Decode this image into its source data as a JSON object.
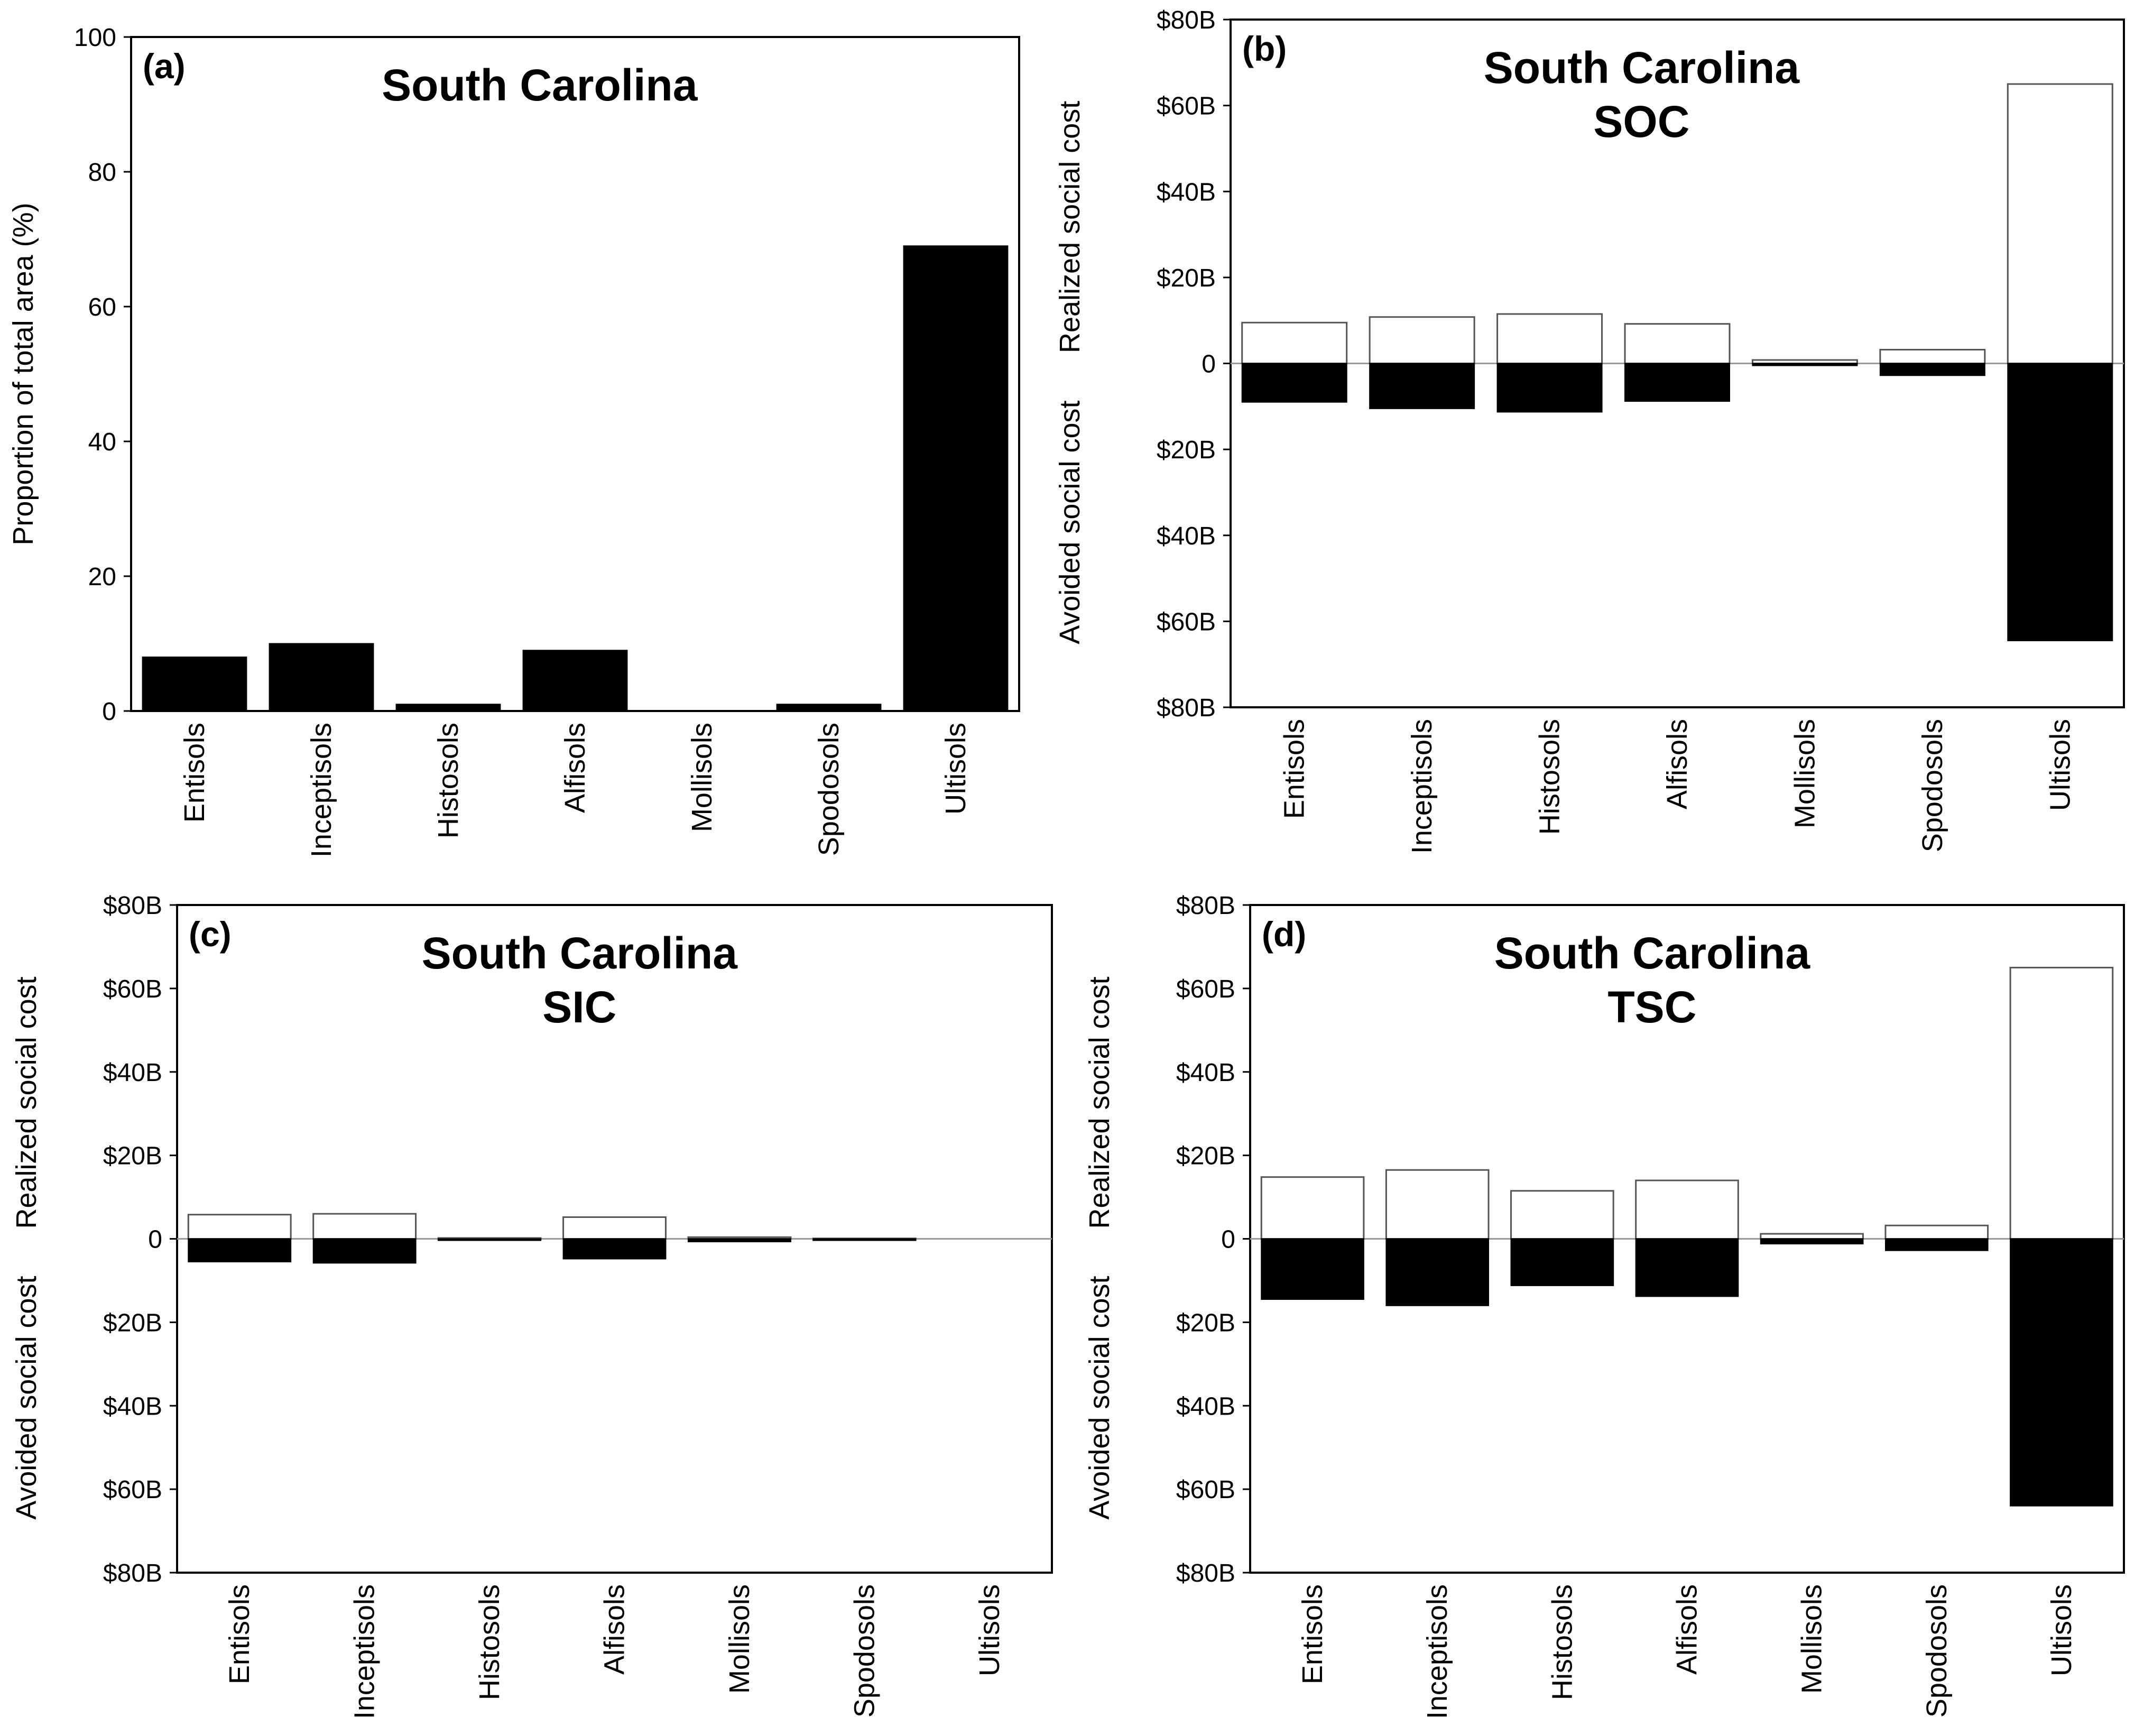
{
  "chart_data": [
    {
      "panel": "(a)",
      "type": "bar",
      "title": "South Carolina",
      "subtitle": "",
      "xlabel": "",
      "ylabel": "Proportion of total area (%)",
      "ylim": [
        0,
        100
      ],
      "yticks": [
        0,
        20,
        40,
        60,
        80,
        100
      ],
      "ytick_labels": [
        "0",
        "20",
        "40",
        "60",
        "80",
        "100"
      ],
      "categories": [
        "Entisols",
        "Inceptisols",
        "Histosols",
        "Alfisols",
        "Mollisols",
        "Spodosols",
        "Ultisols"
      ],
      "series": [
        {
          "name": "Proportion of total area",
          "color": "#000000",
          "values": [
            8,
            10,
            1,
            9,
            0,
            1,
            69
          ]
        }
      ]
    },
    {
      "panel": "(b)",
      "type": "bar",
      "title": "South Carolina",
      "subtitle": "SOC",
      "xlabel": "",
      "ylabel_top": "Realized social cost",
      "ylabel_bottom": "Avoided social cost",
      "ylim": [
        -80,
        80
      ],
      "yticks": [
        80,
        60,
        40,
        20,
        0,
        -20,
        -40,
        -60,
        -80
      ],
      "ytick_labels": [
        "$80B",
        "$60B",
        "$40B",
        "$20B",
        "0",
        "$20B",
        "$40B",
        "$60B",
        "$80B"
      ],
      "categories": [
        "Entisols",
        "Inceptisols",
        "Histosols",
        "Alfisols",
        "Mollisols",
        "Spodosols",
        "Ultisols"
      ],
      "series": [
        {
          "name": "Realized social cost",
          "color": "#ffffff",
          "values": [
            9.5,
            10.8,
            11.5,
            9.2,
            0.8,
            3.2,
            65
          ]
        },
        {
          "name": "Avoided social cost",
          "color": "#000000",
          "values": [
            -9,
            -10.5,
            -11.3,
            -8.8,
            -0.5,
            -2.8,
            -64.5
          ]
        }
      ]
    },
    {
      "panel": "(c)",
      "type": "bar",
      "title": "South Carolina",
      "subtitle": "SIC",
      "xlabel": "",
      "ylabel_top": "Realized social cost",
      "ylabel_bottom": "Avoided social cost",
      "ylim": [
        -80,
        80
      ],
      "yticks": [
        80,
        60,
        40,
        20,
        0,
        -20,
        -40,
        -60,
        -80
      ],
      "ytick_labels": [
        "$80B",
        "$60B",
        "$40B",
        "$20B",
        "0",
        "$20B",
        "$40B",
        "$60B",
        "$80B"
      ],
      "categories": [
        "Entisols",
        "Inceptisols",
        "Histosols",
        "Alfisols",
        "Mollisols",
        "Spodosols",
        "Ultisols"
      ],
      "series": [
        {
          "name": "Realized social cost",
          "color": "#ffffff",
          "values": [
            5.8,
            6,
            0.2,
            5.2,
            0.4,
            0.1,
            0
          ]
        },
        {
          "name": "Avoided social cost",
          "color": "#000000",
          "values": [
            -5.5,
            -5.8,
            -0.2,
            -4.8,
            -0.7,
            -0.1,
            0
          ]
        }
      ]
    },
    {
      "panel": "(d)",
      "type": "bar",
      "title": "South Carolina",
      "subtitle": "TSC",
      "xlabel": "",
      "ylabel_top": "Realized social cost",
      "ylabel_bottom": "Avoided social cost",
      "ylim": [
        -80,
        80
      ],
      "yticks": [
        80,
        60,
        40,
        20,
        0,
        -20,
        -40,
        -60,
        -80
      ],
      "ytick_labels": [
        "$80B",
        "$60B",
        "$40B",
        "$20B",
        "0",
        "$20B",
        "$40B",
        "$60B",
        "$80B"
      ],
      "categories": [
        "Entisols",
        "Inceptisols",
        "Histosols",
        "Alfisols",
        "Mollisols",
        "Spodosols",
        "Ultisols"
      ],
      "series": [
        {
          "name": "Realized social cost",
          "color": "#ffffff",
          "values": [
            14.8,
            16.5,
            11.5,
            14,
            1.2,
            3.2,
            65
          ]
        },
        {
          "name": "Avoided social cost",
          "color": "#000000",
          "values": [
            -14.5,
            -16,
            -11.2,
            -13.8,
            -1.2,
            -2.8,
            -64
          ]
        }
      ]
    }
  ]
}
